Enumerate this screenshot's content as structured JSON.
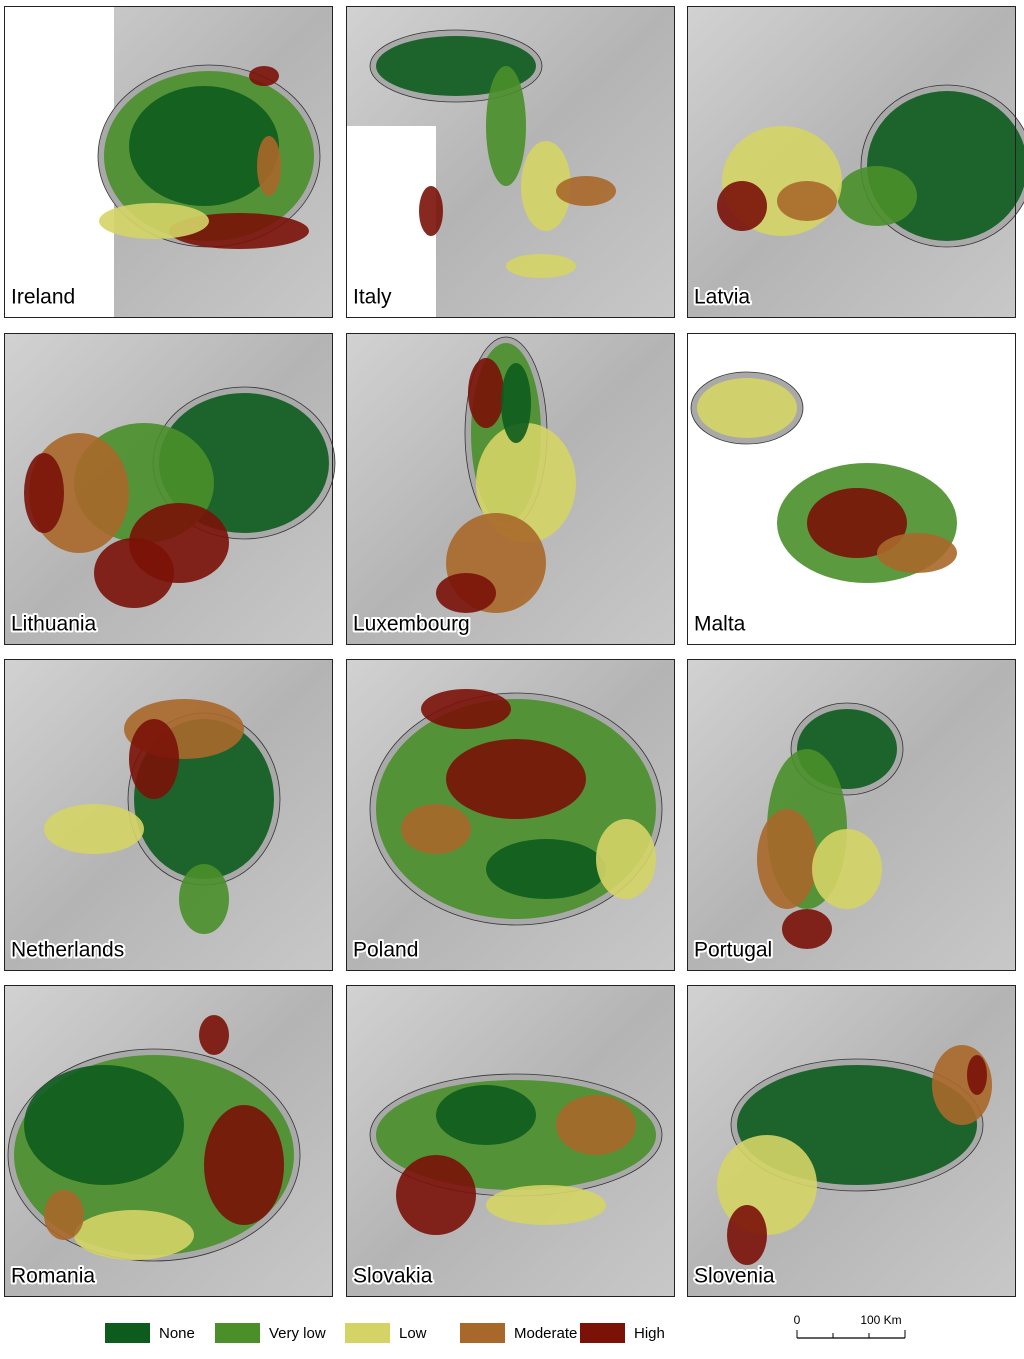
{
  "panels": [
    {
      "label": "Ireland"
    },
    {
      "label": "Italy"
    },
    {
      "label": "Latvia"
    },
    {
      "label": "Lithuania"
    },
    {
      "label": "Luxembourg"
    },
    {
      "label": "Malta"
    },
    {
      "label": "Netherlands"
    },
    {
      "label": "Poland"
    },
    {
      "label": "Portugal"
    },
    {
      "label": "Romania"
    },
    {
      "label": "Slovakia"
    },
    {
      "label": "Slovenia"
    }
  ],
  "legend": {
    "items": [
      {
        "label": "None",
        "color": "#0d5c1e"
      },
      {
        "label": "Very low",
        "color": "#4a8f2a"
      },
      {
        "label": "Low",
        "color": "#d4d466"
      },
      {
        "label": "Moderate",
        "color": "#a8682a"
      },
      {
        "label": "High",
        "color": "#7a1208"
      }
    ]
  },
  "scale_bar": {
    "start_label": "0",
    "end_label": "100 Km"
  }
}
